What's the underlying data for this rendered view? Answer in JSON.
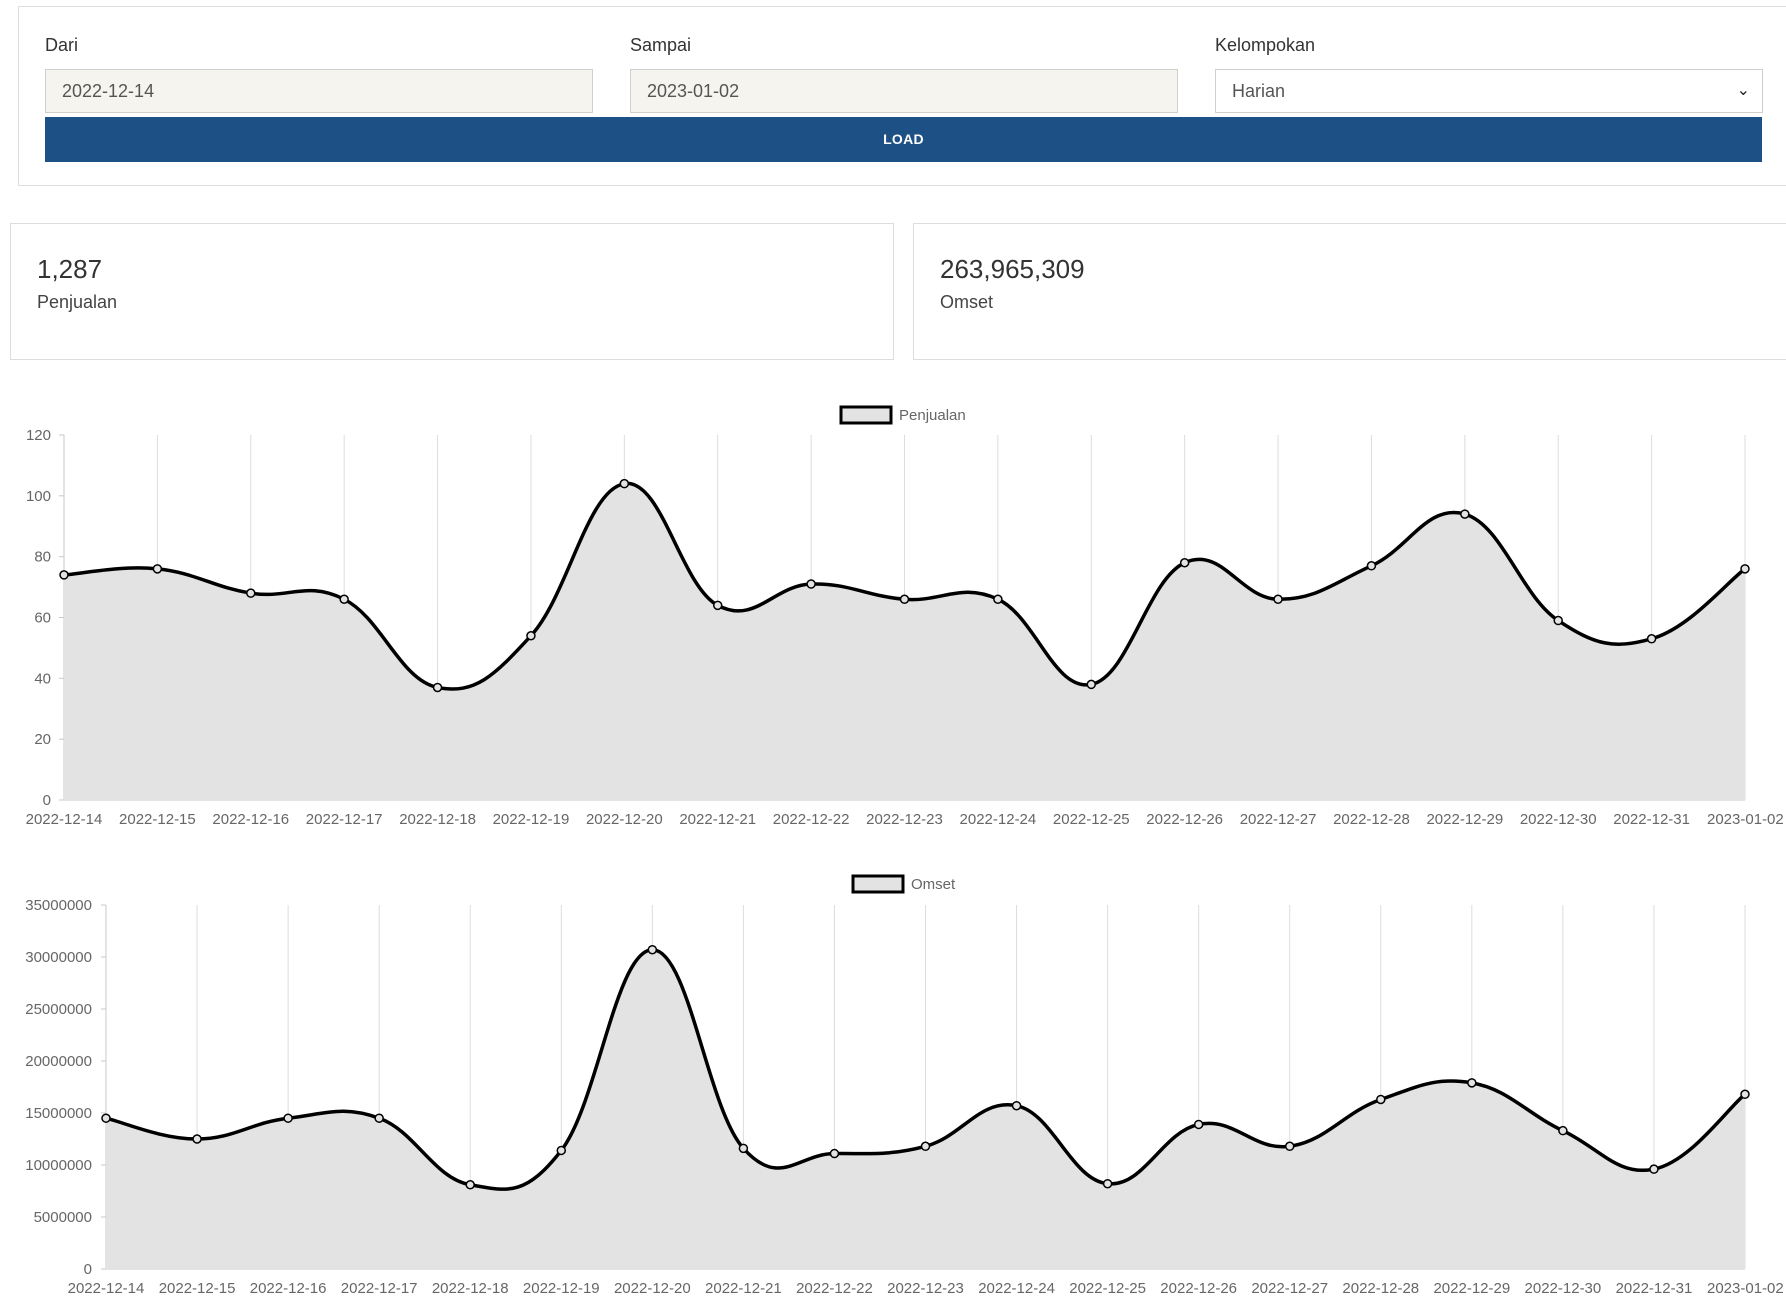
{
  "filters": {
    "from": {
      "label": "Dari",
      "value": "2022-12-14"
    },
    "to": {
      "label": "Sampai",
      "value": "2023-01-02"
    },
    "group": {
      "label": "Kelompokan",
      "value": "Harian"
    },
    "load_label": "LOAD"
  },
  "stats": {
    "sales": {
      "value": "1,287",
      "label": "Penjualan"
    },
    "revenue": {
      "value": "263,965,309",
      "label": "Omset"
    }
  },
  "colors": {
    "accent": "#1d5185",
    "line": "#000000",
    "fill": "#e3e3e3",
    "grid": "#dddddd",
    "input_readonly_bg": "#f6f4ef"
  },
  "chart_data": [
    {
      "type": "area",
      "legend_position": "top",
      "grid": true,
      "x": [
        "2022-12-14",
        "2022-12-15",
        "2022-12-16",
        "2022-12-17",
        "2022-12-18",
        "2022-12-19",
        "2022-12-20",
        "2022-12-21",
        "2022-12-22",
        "2022-12-23",
        "2022-12-24",
        "2022-12-25",
        "2022-12-26",
        "2022-12-27",
        "2022-12-28",
        "2022-12-29",
        "2022-12-30",
        "2022-12-31",
        "2023-01-02"
      ],
      "yticks": [
        0,
        20,
        40,
        60,
        80,
        100,
        120
      ],
      "ylim": [
        0,
        120
      ],
      "series": [
        {
          "name": "Penjualan",
          "values": [
            74,
            76,
            68,
            66,
            37,
            54,
            104,
            64,
            71,
            66,
            66,
            38,
            78,
            66,
            77,
            94,
            59,
            53,
            76
          ]
        }
      ]
    },
    {
      "type": "area",
      "legend_position": "top",
      "grid": true,
      "x": [
        "2022-12-14",
        "2022-12-15",
        "2022-12-16",
        "2022-12-17",
        "2022-12-18",
        "2022-12-19",
        "2022-12-20",
        "2022-12-21",
        "2022-12-22",
        "2022-12-23",
        "2022-12-24",
        "2022-12-25",
        "2022-12-26",
        "2022-12-27",
        "2022-12-28",
        "2022-12-29",
        "2022-12-30",
        "2022-12-31",
        "2023-01-02"
      ],
      "yticks": [
        0,
        5000000,
        10000000,
        15000000,
        20000000,
        25000000,
        30000000,
        35000000
      ],
      "ylim": [
        0,
        35000000
      ],
      "series": [
        {
          "name": "Omset",
          "values": [
            14500000,
            12500000,
            14500000,
            14500000,
            8100000,
            11400000,
            30700000,
            11600000,
            11100000,
            11800000,
            15700000,
            8200000,
            13900000,
            11800000,
            16300000,
            17900000,
            13300000,
            9600000,
            16800000
          ]
        }
      ]
    }
  ]
}
